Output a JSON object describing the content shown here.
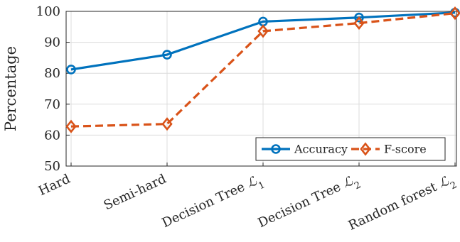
{
  "chart_data": {
    "type": "line",
    "categories": [
      "Hard",
      "Semi-hard",
      "Decision Tree",
      "Decision Tree",
      "Random forest"
    ],
    "category_subscripts": [
      "",
      "",
      "1",
      "2",
      "2"
    ],
    "category_script_letter": "ℒ",
    "ylabel": "Percentage",
    "xlabel": "",
    "title": "",
    "ylim": [
      50,
      100
    ],
    "yticks": [
      50,
      60,
      70,
      80,
      90,
      100
    ],
    "grid": true,
    "legend_position": "bottom-right",
    "series": [
      {
        "name": "Accuracy",
        "values": [
          81.2,
          86.0,
          96.7,
          98.0,
          99.6
        ],
        "color": "#0072BD",
        "marker": "circle",
        "line_style": "solid"
      },
      {
        "name": "F-score",
        "values": [
          62.8,
          63.6,
          93.6,
          96.2,
          99.4
        ],
        "color": "#D95319",
        "marker": "diamond",
        "line_style": "dashed"
      }
    ]
  }
}
